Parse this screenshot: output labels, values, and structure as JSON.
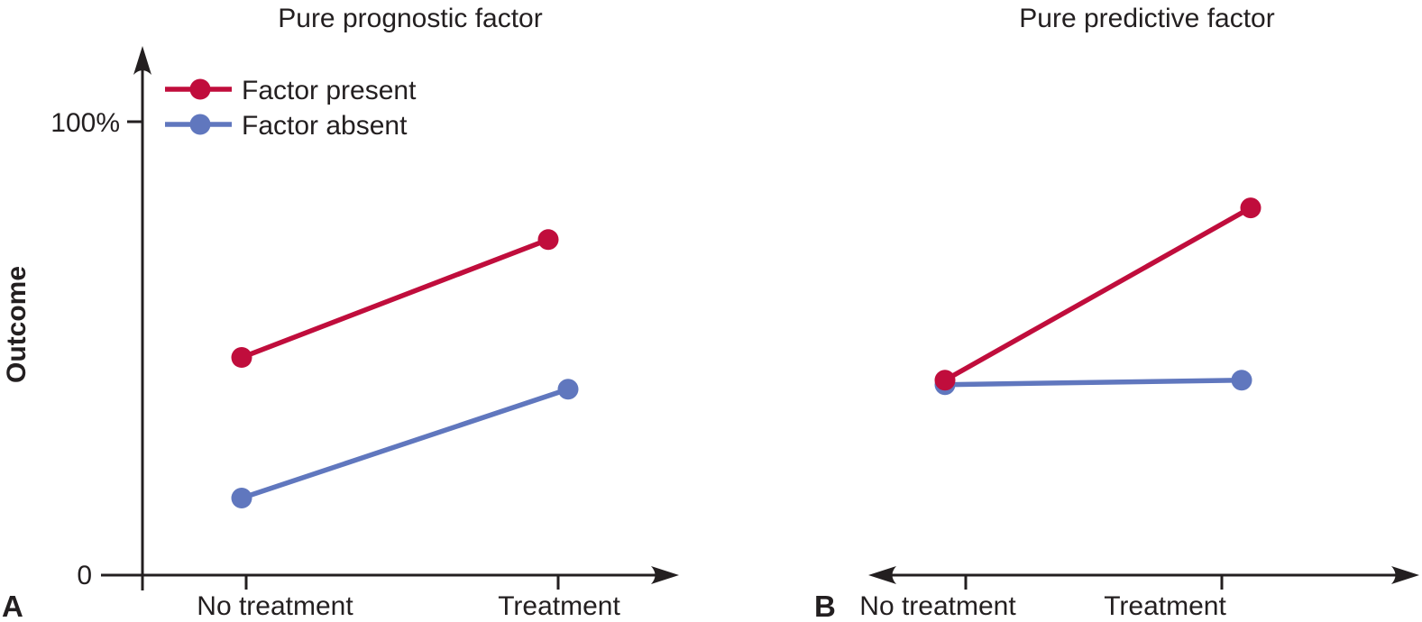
{
  "figure": {
    "panel_labels": {
      "a": "A",
      "b": "B"
    },
    "colors": {
      "factor_present": "#C00D3C",
      "factor_absent": "#6077BE",
      "axis": "#231F20",
      "background": "#FFFFFF"
    }
  },
  "chart_data": [
    {
      "type": "line",
      "panel": "A",
      "title": "Pure prognostic factor",
      "categories": [
        "No treatment",
        "Treatment"
      ],
      "xlabel": "",
      "ylabel": "Outcome",
      "ylim": [
        0,
        100
      ],
      "ytick_labels": [
        "0",
        "100%"
      ],
      "grid": false,
      "legend_position": "top-left",
      "series": [
        {
          "name": "Factor present",
          "color": "#C00D3C",
          "values": [
            48,
            74
          ]
        },
        {
          "name": "Factor absent",
          "color": "#6077BE",
          "values": [
            17,
            41
          ]
        }
      ]
    },
    {
      "type": "line",
      "panel": "B",
      "title": "Pure predictive factor",
      "categories": [
        "No treatment",
        "Treatment"
      ],
      "xlabel": "",
      "ylabel": "",
      "ylim": [
        0,
        100
      ],
      "ytick_labels": [],
      "grid": false,
      "legend_position": "none",
      "series": [
        {
          "name": "Factor present",
          "color": "#C00D3C",
          "values": [
            43,
            81
          ]
        },
        {
          "name": "Factor absent",
          "color": "#6077BE",
          "values": [
            42,
            43
          ]
        }
      ]
    }
  ]
}
